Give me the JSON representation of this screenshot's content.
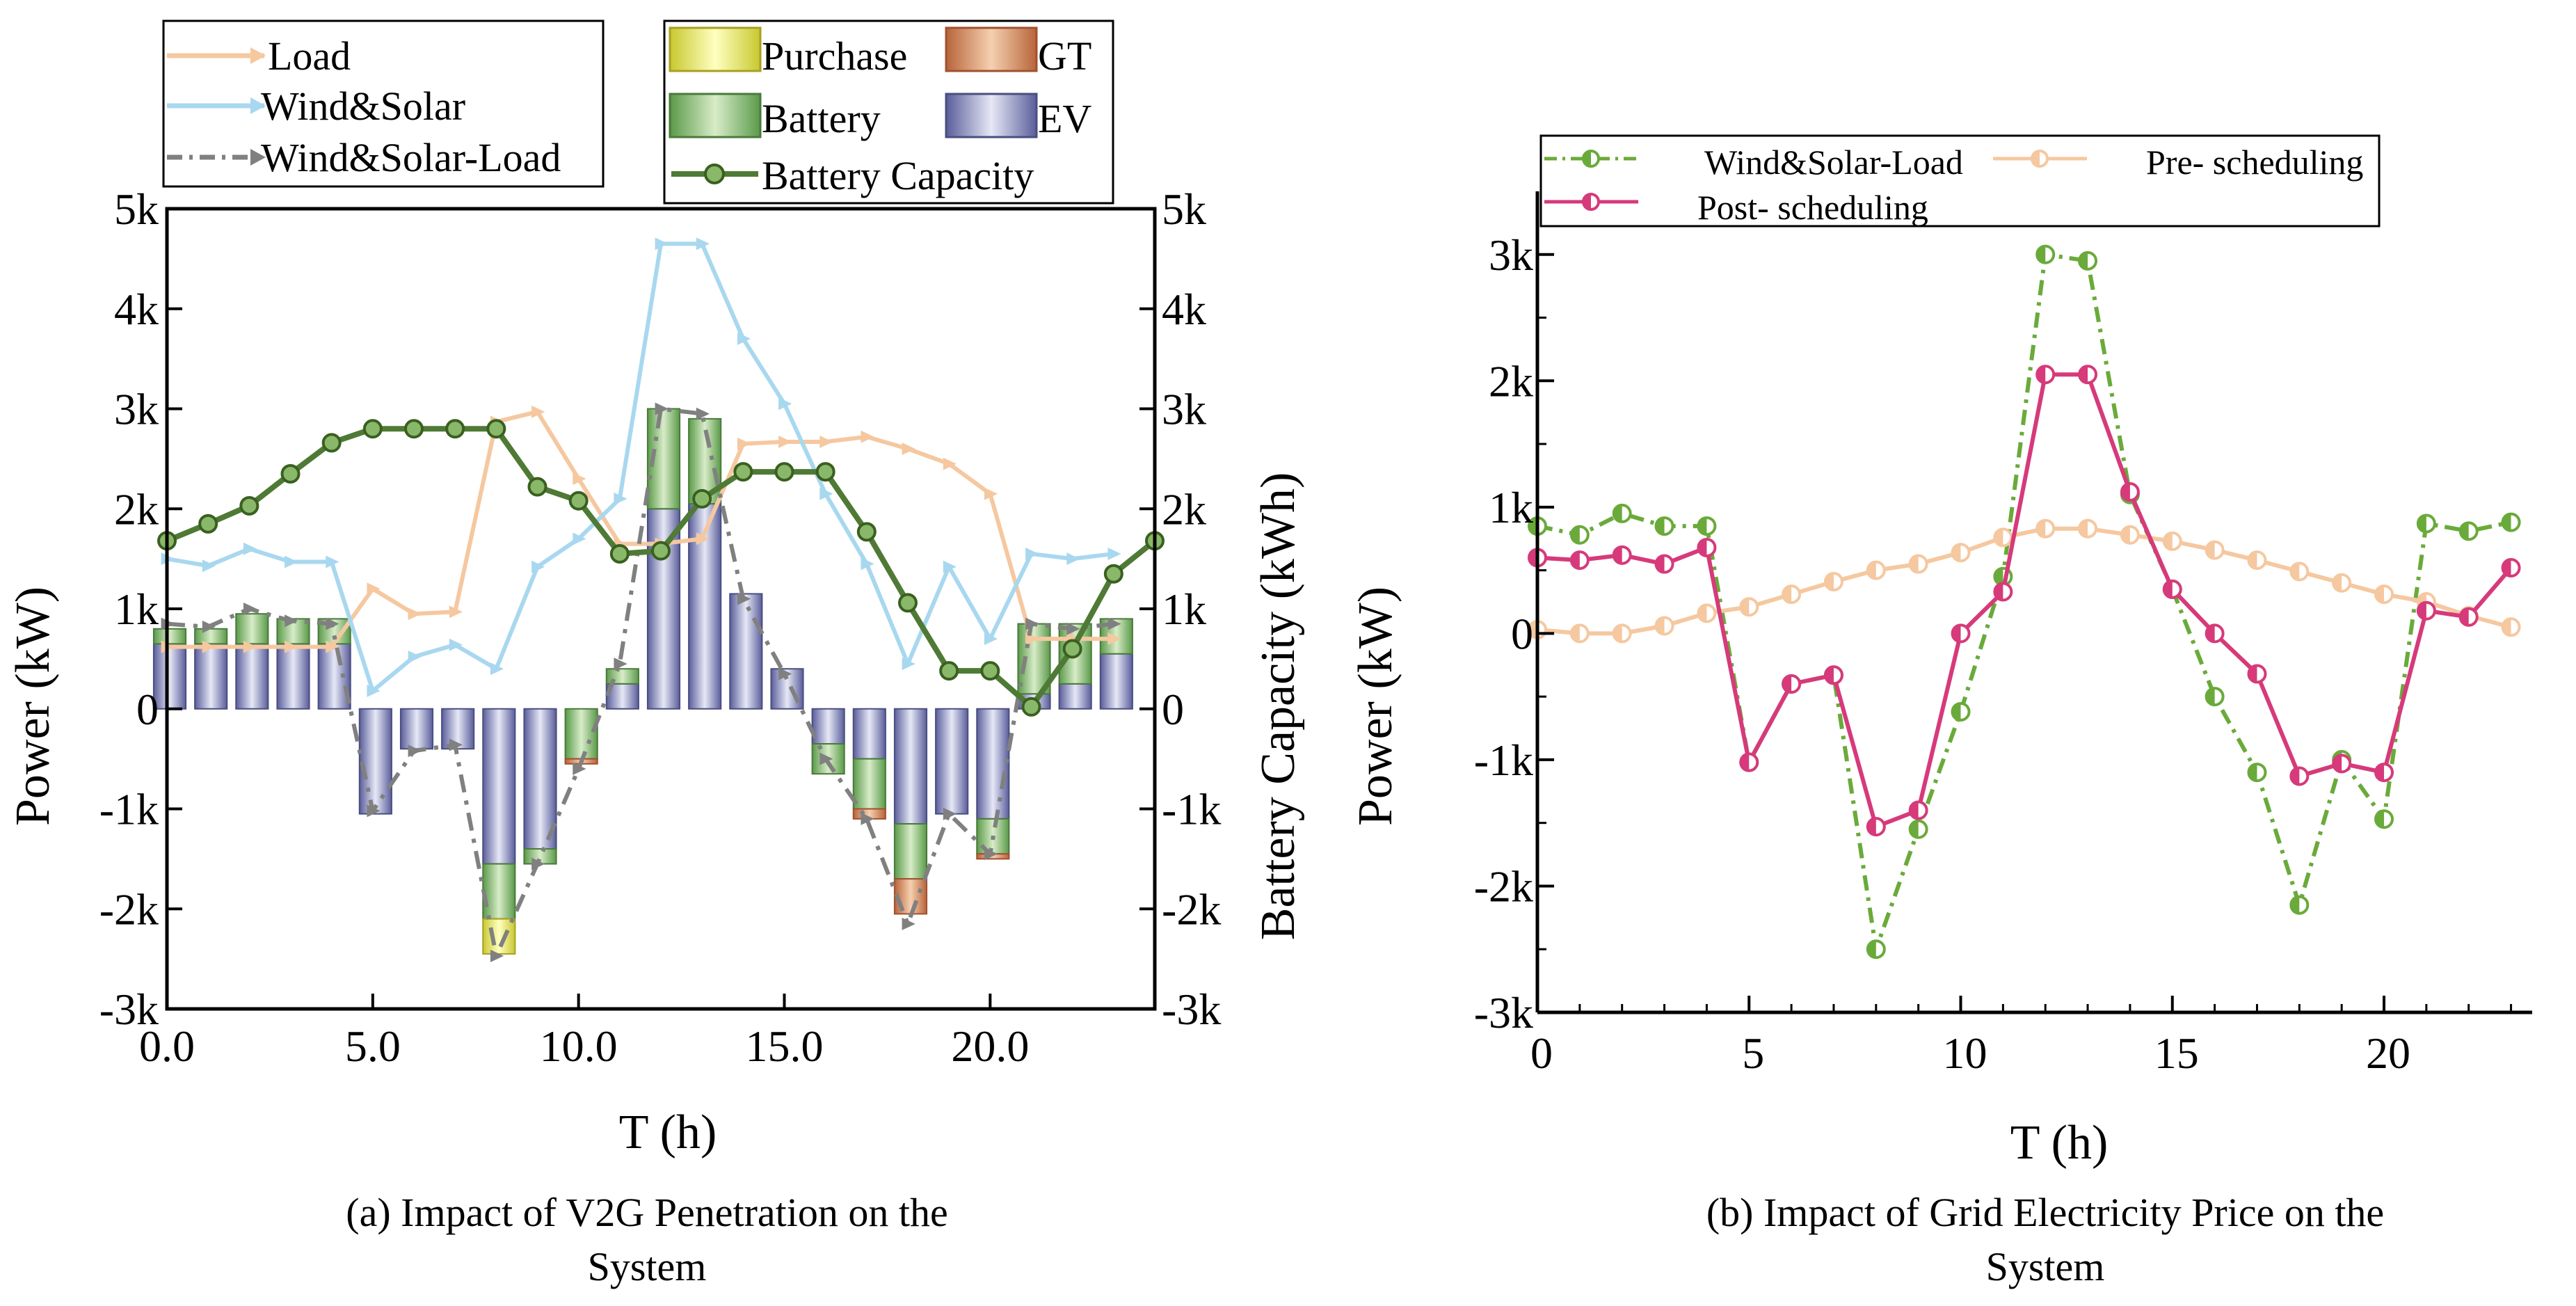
{
  "chart_data": [
    {
      "type": "bar",
      "title": "",
      "caption_lines": [
        "(a) Impact of V2G Penetration on the",
        "System"
      ],
      "xlabel": "T (h)",
      "ylabel": "Power (kW)",
      "y2label": "Battery Capacity (kWh)",
      "xlim": [
        0,
        24
      ],
      "ylim": [
        -3000,
        5000
      ],
      "y2lim": [
        -3000,
        5000
      ],
      "xticks": [
        0,
        5,
        10,
        15,
        20
      ],
      "xtick_labels": [
        "0.0",
        "5.0",
        "10.0",
        "15.0",
        "20.0"
      ],
      "yticks": [
        -3000,
        -2000,
        -1000,
        0,
        1000,
        2000,
        3000,
        4000,
        5000
      ],
      "ytick_labels": [
        "-3k",
        "-2k",
        "-1k",
        "0",
        "1k",
        "2k",
        "3k",
        "4k",
        "5k"
      ],
      "bar_series": [
        {
          "name": "Purchase",
          "color": "#e8e84a",
          "edge": "#a8a020",
          "values": [
            0,
            0,
            0,
            0,
            0,
            0,
            0,
            0,
            -350,
            0,
            0,
            0,
            0,
            0,
            0,
            0,
            0,
            0,
            0,
            0,
            0,
            0,
            0,
            0
          ]
        },
        {
          "name": "GT",
          "color": "#d98a5a",
          "edge": "#a05030",
          "values": [
            0,
            0,
            0,
            0,
            0,
            0,
            0,
            0,
            0,
            0,
            -50,
            0,
            0,
            0,
            0,
            0,
            0,
            -100,
            -350,
            0,
            -50,
            0,
            0,
            0
          ]
        },
        {
          "name": "Battery",
          "color": "#7fb36a",
          "edge": "#4a7a3a",
          "values": [
            150,
            150,
            300,
            250,
            250,
            0,
            0,
            0,
            -550,
            -150,
            -500,
            150,
            1000,
            850,
            0,
            0,
            -300,
            -500,
            -550,
            0,
            -350,
            700,
            600,
            350
          ]
        },
        {
          "name": "EV",
          "color": "#8a8ec0",
          "edge": "#4a4e80",
          "values": [
            650,
            650,
            650,
            650,
            650,
            -1050,
            -400,
            -400,
            -1550,
            -1400,
            0,
            250,
            2000,
            2050,
            1150,
            400,
            -350,
            -500,
            -1150,
            -1050,
            -1100,
            150,
            250,
            550
          ]
        }
      ],
      "line_series": [
        {
          "name": "Load",
          "color": "#f5c8a0",
          "marker": "triangle-right",
          "values": [
            620,
            620,
            620,
            620,
            620,
            1200,
            950,
            970,
            2870,
            2970,
            2300,
            1650,
            1650,
            1700,
            2650,
            2670,
            2670,
            2720,
            2600,
            2450,
            2150,
            700,
            700,
            700
          ]
        },
        {
          "name": "Wind&Solar",
          "color": "#a8d8ef",
          "marker": "triangle-right",
          "values": [
            1500,
            1430,
            1600,
            1470,
            1470,
            180,
            520,
            640,
            400,
            1420,
            1700,
            2100,
            4650,
            4650,
            3700,
            3050,
            2150,
            1450,
            450,
            1420,
            700,
            1550,
            1500,
            1550
          ]
        },
        {
          "name": "Wind&Solar-Load",
          "color": "#808080",
          "marker": "triangle-right",
          "dash": "dash-dot",
          "values": [
            850,
            820,
            1000,
            880,
            850,
            -1020,
            -420,
            -360,
            -2470,
            -1550,
            -600,
            450,
            3000,
            2950,
            1100,
            350,
            -500,
            -1100,
            -2150,
            -1050,
            -1450,
            850,
            800,
            850
          ]
        },
        {
          "name": "Battery Capacity",
          "color": "#4f7a35",
          "marker": "circle",
          "axis": "y2",
          "x": [
            0,
            1,
            2,
            3,
            4,
            5,
            6,
            7,
            8,
            9,
            10,
            11,
            12,
            13,
            14,
            15,
            16,
            17,
            18,
            19,
            20,
            21,
            22,
            23,
            24
          ],
          "values": [
            1680,
            1850,
            2030,
            2350,
            2660,
            2800,
            2800,
            2800,
            2800,
            2220,
            2080,
            1550,
            1580,
            2100,
            2370,
            2370,
            2370,
            1770,
            1060,
            380,
            380,
            20,
            600,
            1350,
            1680
          ]
        }
      ],
      "legend": [
        {
          "label": "Load"
        },
        {
          "label": "Wind&Solar"
        },
        {
          "label": "Wind&Solar-Load"
        },
        {
          "label": "Purchase"
        },
        {
          "label": "GT"
        },
        {
          "label": "Battery"
        },
        {
          "label": "EV"
        },
        {
          "label": "Battery Capacity"
        }
      ]
    },
    {
      "type": "line",
      "title": "",
      "caption_lines": [
        "(b) Impact of Grid Electricity Price on the",
        "System"
      ],
      "xlabel": "T (h)",
      "ylabel": "Power (kW)",
      "xlim": [
        0,
        23.5
      ],
      "ylim": [
        -3000,
        3500
      ],
      "xticks": [
        0,
        5,
        10,
        15,
        20
      ],
      "xtick_labels": [
        "0",
        "5",
        "10",
        "15",
        "20"
      ],
      "yticks": [
        -3000,
        -2000,
        -1000,
        0,
        1000,
        2000,
        3000
      ],
      "ytick_labels": [
        "-3k",
        "-2k",
        "-1k",
        "0",
        "1k",
        "2k",
        "3k"
      ],
      "series": [
        {
          "name": "Wind&Solar-Load",
          "legend_label": "Wind&Solar-Load",
          "color": "#6aaa3a",
          "dash": "dash-dot",
          "marker": "half-circle",
          "values": [
            850,
            780,
            950,
            850,
            850,
            -1020,
            -400,
            -330,
            -2500,
            -1550,
            -620,
            450,
            3000,
            2950,
            1100,
            350,
            -500,
            -1100,
            -2150,
            -1000,
            -1470,
            870,
            810,
            880
          ]
        },
        {
          "name": "Pre- scheduling",
          "legend_label": "Pre- scheduling",
          "color": "#f5c8a0",
          "marker": "half-circle",
          "values": [
            30,
            0,
            0,
            60,
            160,
            210,
            310,
            410,
            500,
            550,
            640,
            760,
            830,
            830,
            780,
            730,
            660,
            580,
            490,
            400,
            310,
            250,
            140,
            50
          ]
        },
        {
          "name": "Post- scheduling",
          "legend_label": "Post- scheduling",
          "color": "#d63a7a",
          "marker": "half-circle",
          "values": [
            600,
            580,
            620,
            550,
            680,
            -1020,
            -400,
            -330,
            -1530,
            -1400,
            0,
            330,
            2050,
            2050,
            1120,
            350,
            0,
            -320,
            -1130,
            -1030,
            -1100,
            180,
            130,
            520
          ]
        }
      ]
    }
  ]
}
